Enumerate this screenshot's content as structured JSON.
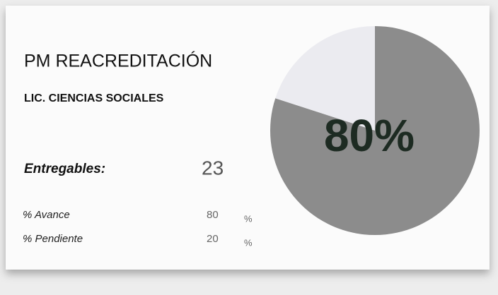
{
  "header": {
    "title": "PM REACREDITACIÓN",
    "subtitle": "LIC. CIENCIAS SOCIALES"
  },
  "summary": {
    "label": "Entregables:",
    "value": 23
  },
  "unit": "%",
  "chart_data": {
    "type": "pie",
    "categories": [
      "% Avance",
      "% Pendiente"
    ],
    "values": [
      80,
      20
    ],
    "value_labels": [
      "80%",
      null
    ],
    "colors": [
      "#8c8c8c",
      "#ebebf0"
    ]
  }
}
